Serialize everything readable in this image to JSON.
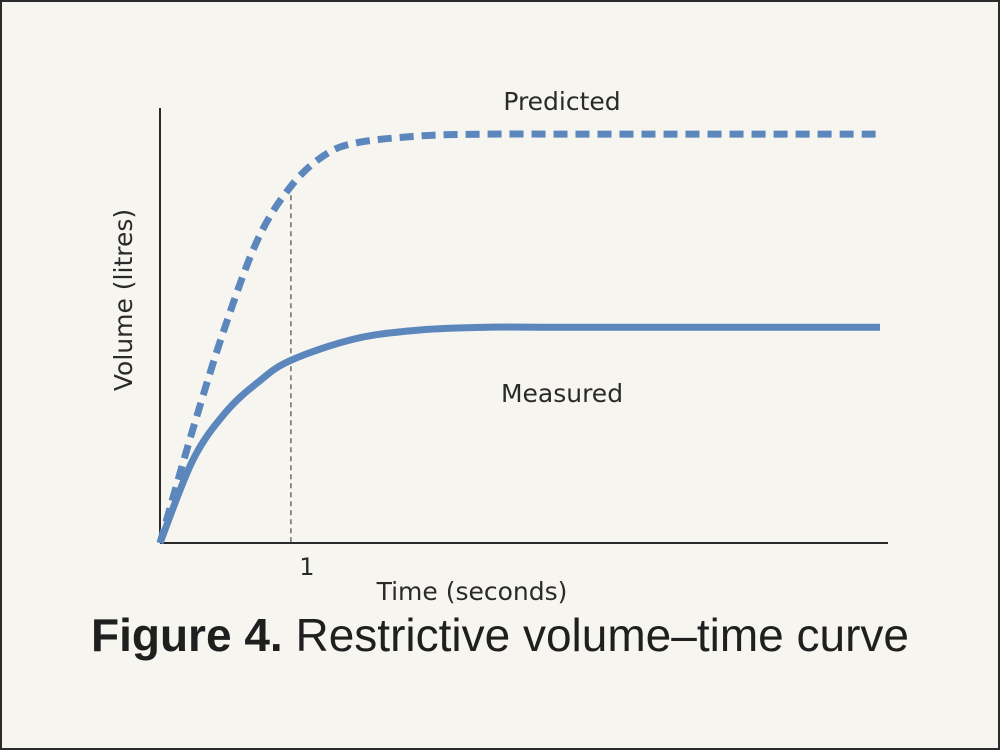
{
  "chart_data": {
    "type": "line",
    "xlabel": "Time (seconds)",
    "ylabel": "Volume (litres)",
    "x_ticks": [
      1
    ],
    "x_tick_labels": [
      "1"
    ],
    "xlim": [
      0,
      5.5
    ],
    "ylim": [
      0,
      5
    ],
    "grid": false,
    "legend": "none",
    "reference_lines": [
      {
        "orientation": "vertical",
        "x": 1,
        "style": "dashed"
      }
    ],
    "series": [
      {
        "name": "Predicted",
        "style": "dashed",
        "color": "#5b87bd",
        "x": [
          0,
          0.25,
          0.5,
          0.75,
          1,
          1.25,
          1.5,
          2,
          2.5,
          3,
          4,
          5.5
        ],
        "y": [
          0,
          1.3,
          2.5,
          3.5,
          4.1,
          4.45,
          4.6,
          4.68,
          4.7,
          4.7,
          4.7,
          4.7
        ]
      },
      {
        "name": "Measured",
        "style": "solid",
        "color": "#5b87bd",
        "x": [
          0,
          0.25,
          0.5,
          0.75,
          1,
          1.5,
          2,
          2.5,
          3,
          4,
          5.5
        ],
        "y": [
          0,
          0.95,
          1.5,
          1.85,
          2.1,
          2.35,
          2.45,
          2.48,
          2.48,
          2.48,
          2.48
        ]
      }
    ]
  },
  "caption": {
    "bold": "Figure 4.",
    "rest": " Restrictive volume–time curve"
  }
}
